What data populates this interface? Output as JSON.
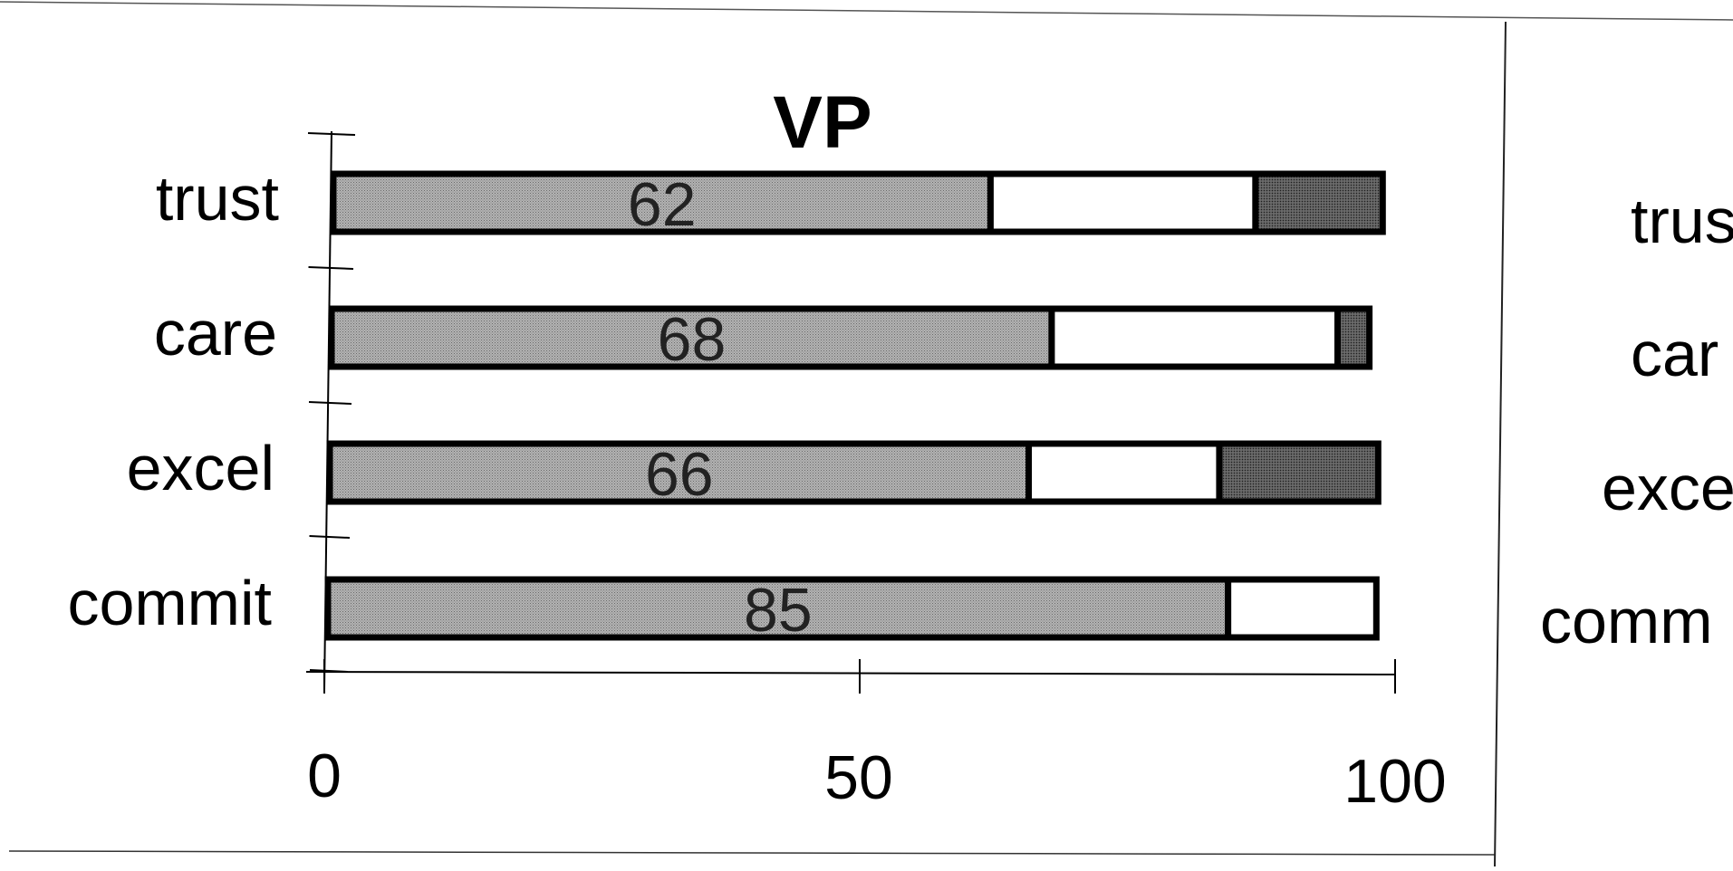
{
  "chart_data": [
    {
      "type": "bar",
      "orientation": "horizontal",
      "stacked": true,
      "title": "VP",
      "categories": [
        "trust",
        "care",
        "excel",
        "commit"
      ],
      "series": [
        {
          "values": [
            62,
            68,
            66,
            85
          ],
          "color": "#9a9a9a",
          "data_labels": [
            "62",
            "68",
            "66",
            "85"
          ]
        },
        {
          "values": [
            25,
            27,
            18,
            14
          ],
          "color": "#ffffff"
        },
        {
          "values": [
            12,
            3,
            15,
            0
          ],
          "color": "#4a4a4a"
        }
      ],
      "x_ticks": [
        "0",
        "50",
        "100"
      ],
      "xlim": [
        0,
        100
      ],
      "grid": false,
      "legend": "none"
    },
    {
      "type": "bar",
      "orientation": "horizontal",
      "partial": true,
      "categories": [
        "trus",
        "car",
        "exce",
        "comm"
      ]
    }
  ]
}
